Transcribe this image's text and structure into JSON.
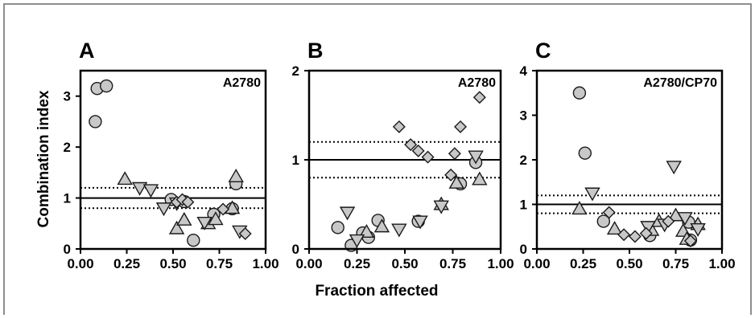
{
  "colors": {
    "marker_fill": "#c8c8c8",
    "marker_stroke": "#1a1a1a",
    "reference_line": "#000000",
    "frame": "#8e8e8e"
  },
  "chart_data": {
    "type": "scatter",
    "xlabel": "Fraction affected",
    "ylabel": "Combination index",
    "marker_shapes": [
      "circle",
      "triangle-up",
      "triangle-down",
      "diamond"
    ],
    "panels": [
      {
        "letter": "A",
        "cell_line": "A2780",
        "xlim": [
          0,
          1
        ],
        "ylim": [
          0,
          3.5
        ],
        "xticks": [
          "0.00",
          "0.25",
          "0.50",
          "0.75",
          "1.00"
        ],
        "yticks": [
          0,
          1,
          2,
          3
        ],
        "reference_lines": [
          {
            "y": 1.0,
            "style": "solid"
          },
          {
            "y": 1.2,
            "style": "dotted"
          },
          {
            "y": 0.8,
            "style": "dotted"
          }
        ],
        "series": [
          {
            "shape": "circle",
            "points": [
              [
                0.08,
                2.5
              ],
              [
                0.09,
                3.15
              ],
              [
                0.14,
                3.2
              ],
              [
                0.49,
                0.97
              ],
              [
                0.56,
                0.93
              ],
              [
                0.61,
                0.17
              ],
              [
                0.72,
                0.68
              ],
              [
                0.82,
                0.79
              ],
              [
                0.84,
                1.28
              ]
            ]
          },
          {
            "shape": "triangle-up",
            "points": [
              [
                0.24,
                1.37
              ],
              [
                0.52,
                0.4
              ],
              [
                0.56,
                0.57
              ],
              [
                0.69,
                0.5
              ],
              [
                0.73,
                0.58
              ],
              [
                0.84,
                1.42
              ],
              [
                0.82,
                0.8
              ]
            ]
          },
          {
            "shape": "triangle-down",
            "points": [
              [
                0.32,
                1.2
              ],
              [
                0.38,
                1.16
              ],
              [
                0.45,
                0.8
              ],
              [
                0.52,
                0.9
              ],
              [
                0.67,
                0.52
              ],
              [
                0.86,
                0.35
              ]
            ]
          },
          {
            "shape": "diamond",
            "points": [
              [
                0.52,
                0.92
              ],
              [
                0.55,
                0.97
              ],
              [
                0.58,
                0.92
              ],
              [
                0.77,
                0.78
              ],
              [
                0.89,
                0.3
              ]
            ]
          }
        ]
      },
      {
        "letter": "B",
        "cell_line": "A2780",
        "xlim": [
          0,
          1
        ],
        "ylim": [
          0,
          2
        ],
        "xticks": [
          "0.00",
          "0.25",
          "0.50",
          "0.75",
          "1.00"
        ],
        "yticks": [
          0,
          1,
          2
        ],
        "reference_lines": [
          {
            "y": 1.0,
            "style": "solid"
          },
          {
            "y": 1.2,
            "style": "dotted"
          },
          {
            "y": 0.8,
            "style": "dotted"
          }
        ],
        "series": [
          {
            "shape": "circle",
            "points": [
              [
                0.15,
                0.24
              ],
              [
                0.22,
                0.04
              ],
              [
                0.28,
                0.18
              ],
              [
                0.31,
                0.13
              ],
              [
                0.36,
                0.32
              ],
              [
                0.57,
                0.31
              ],
              [
                0.79,
                0.73
              ],
              [
                0.87,
                0.97
              ]
            ]
          },
          {
            "shape": "triangle-up",
            "points": [
              [
                0.3,
                0.19
              ],
              [
                0.38,
                0.25
              ],
              [
                0.69,
                0.5
              ],
              [
                0.77,
                0.74
              ],
              [
                0.89,
                0.78
              ]
            ]
          },
          {
            "shape": "triangle-down",
            "points": [
              [
                0.2,
                0.41
              ],
              [
                0.25,
                0.1
              ],
              [
                0.47,
                0.22
              ],
              [
                0.58,
                0.31
              ],
              [
                0.69,
                0.48
              ],
              [
                0.87,
                1.04
              ]
            ]
          },
          {
            "shape": "diamond",
            "points": [
              [
                0.47,
                1.37
              ],
              [
                0.53,
                1.17
              ],
              [
                0.57,
                1.1
              ],
              [
                0.62,
                1.03
              ],
              [
                0.74,
                0.83
              ],
              [
                0.76,
                1.07
              ],
              [
                0.79,
                1.37
              ],
              [
                0.89,
                1.7
              ]
            ]
          }
        ]
      },
      {
        "letter": "C",
        "cell_line": "A2780/CP70",
        "xlim": [
          0,
          1
        ],
        "ylim": [
          0,
          4
        ],
        "xticks": [
          "0.00",
          "0.25",
          "0.50",
          "0.75",
          "1.00"
        ],
        "yticks": [
          0,
          1,
          2,
          3,
          4
        ],
        "reference_lines": [
          {
            "y": 1.0,
            "style": "solid"
          },
          {
            "y": 1.2,
            "style": "dotted"
          },
          {
            "y": 0.8,
            "style": "dotted"
          }
        ],
        "series": [
          {
            "shape": "circle",
            "points": [
              [
                0.23,
                3.5
              ],
              [
                0.26,
                2.15
              ],
              [
                0.36,
                0.62
              ],
              [
                0.61,
                0.3
              ],
              [
                0.82,
                0.6
              ],
              [
                0.83,
                0.2
              ]
            ]
          },
          {
            "shape": "triangle-up",
            "points": [
              [
                0.23,
                0.9
              ],
              [
                0.42,
                0.45
              ],
              [
                0.62,
                0.42
              ],
              [
                0.66,
                0.62
              ],
              [
                0.75,
                0.75
              ],
              [
                0.79,
                0.4
              ],
              [
                0.81,
                0.22
              ],
              [
                0.87,
                0.55
              ]
            ]
          },
          {
            "shape": "triangle-down",
            "points": [
              [
                0.3,
                1.25
              ],
              [
                0.6,
                0.5
              ],
              [
                0.69,
                0.55
              ],
              [
                0.74,
                1.85
              ],
              [
                0.8,
                0.7
              ],
              [
                0.87,
                0.45
              ]
            ]
          },
          {
            "shape": "diamond",
            "points": [
              [
                0.39,
                0.82
              ],
              [
                0.47,
                0.32
              ],
              [
                0.53,
                0.28
              ],
              [
                0.59,
                0.35
              ],
              [
                0.71,
                0.62
              ],
              [
                0.83,
                0.18
              ]
            ]
          }
        ]
      }
    ]
  }
}
